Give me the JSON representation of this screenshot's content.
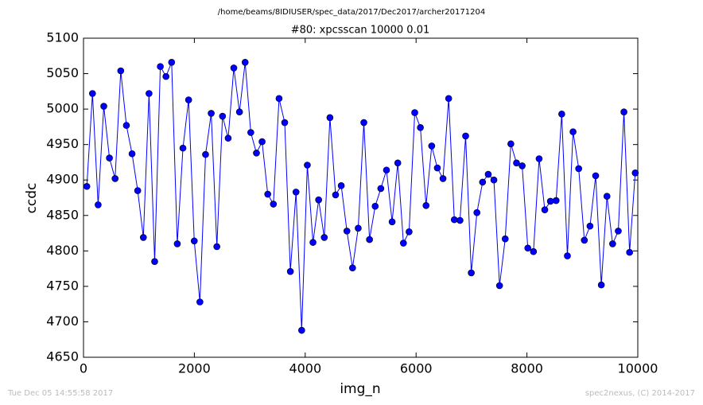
{
  "chart_data": {
    "type": "line",
    "suptitle": "/home/beams/8IDIUSER/spec_data/2017/Dec2017/archer20171204",
    "title": "#80: xpcsscan 10000 0.01",
    "x_label": "img_n",
    "y_label": "ccdc",
    "footer_left": "Tue Dec 05 14:55:58 2017",
    "footer_right": "spec2nexus, (C) 2014-2017",
    "x": [
      60,
      162,
      264,
      366,
      468,
      570,
      672,
      774,
      876,
      978,
      1080,
      1182,
      1284,
      1386,
      1488,
      1590,
      1692,
      1794,
      1896,
      1998,
      2100,
      2202,
      2304,
      2406,
      2508,
      2610,
      2712,
      2814,
      2916,
      3018,
      3120,
      3222,
      3324,
      3426,
      3528,
      3630,
      3732,
      3834,
      3936,
      4038,
      4140,
      4242,
      4344,
      4446,
      4548,
      4650,
      4752,
      4854,
      4956,
      5058,
      5160,
      5262,
      5364,
      5466,
      5568,
      5670,
      5772,
      5874,
      5976,
      6078,
      6180,
      6282,
      6384,
      6486,
      6588,
      6690,
      6792,
      6894,
      6996,
      7098,
      7200,
      7302,
      7404,
      7506,
      7608,
      7710,
      7812,
      7914,
      8016,
      8118,
      8220,
      8322,
      8424,
      8526,
      8628,
      8730,
      8832,
      8934,
      9036,
      9138,
      9240,
      9342,
      9444,
      9546,
      9648,
      9750,
      9852,
      9954
    ],
    "series": [
      {
        "color": "#0000ff",
        "values": [
          4891,
          5022,
          4865,
          5004,
          4931,
          4902,
          5054,
          4977,
          4937,
          4885,
          4819,
          5022,
          4785,
          5060,
          5046,
          5066,
          4810,
          4945,
          5013,
          4814,
          4728,
          4936,
          4994,
          4806,
          4990,
          4959,
          5058,
          4996,
          5066,
          4967,
          4938,
          4954,
          4880,
          4866,
          5015,
          4981,
          4771,
          4883,
          4688,
          4921,
          4812,
          4872,
          4819,
          4988,
          4879,
          4892,
          4828,
          4776,
          4832,
          4981,
          4816,
          4863,
          4888,
          4914,
          4841,
          4924,
          4811,
          4827,
          4995,
          4974,
          4864,
          4948,
          4917,
          4902,
          5015,
          4844,
          4843,
          4962,
          4769,
          4854,
          4897,
          4908,
          4900,
          4751,
          4817,
          4951,
          4924,
          4920,
          4804,
          4799,
          4930,
          4858,
          4870,
          4871,
          4993,
          4793,
          4968,
          4916,
          4815,
          4835,
          4906,
          4752,
          4877,
          4810,
          4828,
          4996,
          4798,
          4910
        ]
      }
    ],
    "xlim": [
      0,
      10000
    ],
    "xticks": [
      0,
      2000,
      4000,
      6000,
      8000,
      10000
    ],
    "ylim": [
      4650,
      5100
    ],
    "yticks": [
      4650,
      4700,
      4750,
      4800,
      4850,
      4900,
      4950,
      5000,
      5050,
      5100
    ]
  }
}
